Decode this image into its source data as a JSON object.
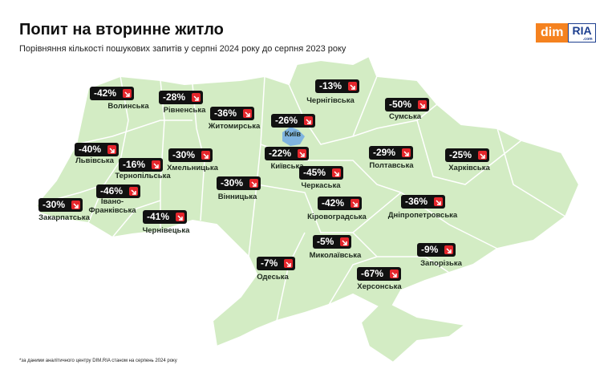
{
  "header": {
    "title": "Попит на вторинне житло",
    "subtitle": "Порівняння кількості пошукових запитів у серпні 2024 року до серпня 2023 року"
  },
  "logo": {
    "left": "dim",
    "right": "RIA",
    "suffix": ".com"
  },
  "regions": [
    {
      "name": "Волинська",
      "change": "-42%"
    },
    {
      "name": "Рівненська",
      "change": "-28%"
    },
    {
      "name": "Житомирська",
      "change": "-36%"
    },
    {
      "name": "Чернігівська",
      "change": "-13%"
    },
    {
      "name": "Сумська",
      "change": "-50%"
    },
    {
      "name": "Київ",
      "change": "-26%"
    },
    {
      "name": "Київська",
      "change": "-22%"
    },
    {
      "name": "Львівська",
      "change": "-40%"
    },
    {
      "name": "Тернопільська",
      "change": "-16%"
    },
    {
      "name": "Хмельницька",
      "change": "-30%"
    },
    {
      "name": "Вінницька",
      "change": "-30%"
    },
    {
      "name": "Черкаська",
      "change": "-45%"
    },
    {
      "name": "Полтавська",
      "change": "-29%"
    },
    {
      "name": "Харківська",
      "change": "-25%"
    },
    {
      "name": "Закарпатська",
      "change": "-30%"
    },
    {
      "name": "Івано-\nФранківська",
      "change": "-46%"
    },
    {
      "name": "Чернівецька",
      "change": "-41%"
    },
    {
      "name": "Кіровоградська",
      "change": "-42%"
    },
    {
      "name": "Дніпропетровська",
      "change": "-36%"
    },
    {
      "name": "Миколаївська",
      "change": "-5%"
    },
    {
      "name": "Запорізька",
      "change": "-9%"
    },
    {
      "name": "Одеська",
      "change": "-7%"
    },
    {
      "name": "Херсонська",
      "change": "-67%"
    }
  ],
  "footnote": "*за даними аналітичного центру DIM.RIA станом на серпень 2024 року"
}
